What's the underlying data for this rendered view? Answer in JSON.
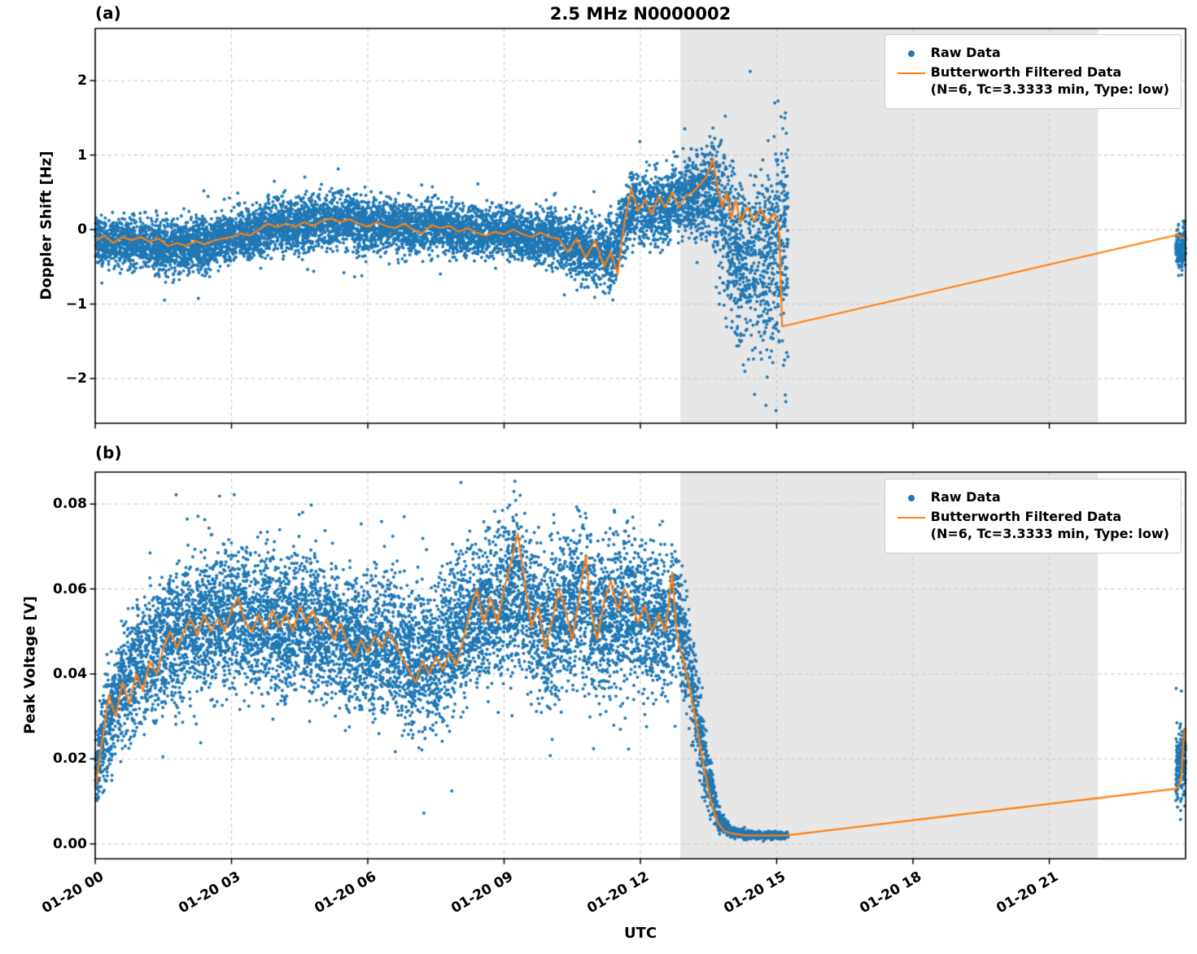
{
  "title": "2.5 MHz N0000002",
  "xlabel": "UTC",
  "legend": {
    "raw": "Raw Data",
    "filtered_line1": "Butterworth Filtered Data",
    "filtered_line2": "(N=6, Tc=3.3333 min, Type: low)"
  },
  "colors": {
    "raw": "#1f77b4",
    "filtered": "#ff7f0e",
    "shade": "#e7e7e7",
    "grid": "#c9c9c9",
    "spine": "#000000"
  },
  "chart_data": [
    {
      "type": "scatter",
      "panel_label": "(a)",
      "ylabel": "Doppler Shift [Hz]",
      "ylim": [
        -2.6,
        2.7
      ],
      "yticks": {
        "values": [
          2,
          1,
          0,
          -1,
          -2
        ],
        "labels": [
          "2",
          "1",
          "0",
          "−1",
          "−2"
        ]
      },
      "xlim": [
        0,
        24
      ],
      "xticks": {
        "values": [
          0,
          3,
          6,
          9,
          12,
          15,
          18,
          21
        ],
        "labels": [
          "01-20 00",
          "01-20 03",
          "01-20 06",
          "01-20 09",
          "01-20 12",
          "01-20 15",
          "01-20 18",
          "01-20 21"
        ]
      },
      "shaded_span": [
        12.88,
        22.07
      ],
      "grid": true,
      "legend_position": "upper right",
      "raw_scatter_envelope": [
        [
          0,
          -0.12,
          0.38
        ],
        [
          0.5,
          -0.18,
          0.4
        ],
        [
          1,
          -0.15,
          0.42
        ],
        [
          1.5,
          -0.25,
          0.45
        ],
        [
          2,
          -0.22,
          0.45
        ],
        [
          2.5,
          -0.18,
          0.42
        ],
        [
          3,
          -0.1,
          0.4
        ],
        [
          3.5,
          -0.02,
          0.42
        ],
        [
          4,
          0.05,
          0.45
        ],
        [
          4.5,
          0.08,
          0.45
        ],
        [
          5,
          0.1,
          0.45
        ],
        [
          5.5,
          0.12,
          0.45
        ],
        [
          6,
          0.05,
          0.45
        ],
        [
          6.5,
          0.08,
          0.45
        ],
        [
          7,
          0.0,
          0.45
        ],
        [
          7.5,
          0.05,
          0.42
        ],
        [
          8,
          -0.02,
          0.42
        ],
        [
          8.5,
          -0.05,
          0.4
        ],
        [
          9,
          -0.03,
          0.42
        ],
        [
          9.5,
          -0.08,
          0.42
        ],
        [
          10,
          -0.1,
          0.45
        ],
        [
          10.5,
          -0.2,
          0.5
        ],
        [
          11,
          -0.3,
          0.55
        ],
        [
          11.4,
          -0.35,
          0.6
        ],
        [
          11.8,
          0.3,
          0.6
        ],
        [
          12.2,
          0.25,
          0.6
        ],
        [
          12.6,
          0.35,
          0.6
        ],
        [
          13,
          0.4,
          0.65
        ],
        [
          13.3,
          0.5,
          0.75
        ],
        [
          13.6,
          0.55,
          0.95
        ],
        [
          13.9,
          0.1,
          1.3
        ],
        [
          14.2,
          -0.5,
          1.35
        ],
        [
          14.6,
          -0.45,
          1.5
        ],
        [
          15,
          -0.2,
          1.8
        ],
        [
          15.25,
          -0.1,
          1.9
        ],
        [
          23.78,
          -0.27,
          0.38
        ],
        [
          24,
          -0.22,
          0.33
        ]
      ],
      "raw_scatter_segments": [
        {
          "range": [
            0,
            15.25
          ],
          "approx_points_per_hour": 600
        },
        {
          "range": [
            23.78,
            24.0
          ],
          "approx_points_per_hour": 800
        }
      ],
      "filtered_line": [
        [
          0,
          -0.15
        ],
        [
          0.2,
          -0.08
        ],
        [
          0.4,
          -0.18
        ],
        [
          0.6,
          -0.1
        ],
        [
          0.8,
          -0.14
        ],
        [
          1,
          -0.1
        ],
        [
          1.2,
          -0.16
        ],
        [
          1.4,
          -0.12
        ],
        [
          1.6,
          -0.22
        ],
        [
          1.8,
          -0.18
        ],
        [
          2,
          -0.22
        ],
        [
          2.2,
          -0.15
        ],
        [
          2.4,
          -0.2
        ],
        [
          2.6,
          -0.15
        ],
        [
          2.8,
          -0.12
        ],
        [
          3,
          -0.1
        ],
        [
          3.2,
          -0.05
        ],
        [
          3.4,
          -0.08
        ],
        [
          3.6,
          0
        ],
        [
          3.8,
          0.08
        ],
        [
          4,
          0.03
        ],
        [
          4.2,
          0.08
        ],
        [
          4.4,
          0.04
        ],
        [
          4.6,
          0.1
        ],
        [
          4.8,
          0.05
        ],
        [
          5,
          0.12
        ],
        [
          5.2,
          0.15
        ],
        [
          5.4,
          0.1
        ],
        [
          5.6,
          0.14
        ],
        [
          5.8,
          0.08
        ],
        [
          6,
          0.04
        ],
        [
          6.2,
          0.1
        ],
        [
          6.4,
          0.05
        ],
        [
          6.6,
          0.02
        ],
        [
          6.8,
          0.08
        ],
        [
          7,
          0.0
        ],
        [
          7.2,
          -0.05
        ],
        [
          7.4,
          0.06
        ],
        [
          7.6,
          0.02
        ],
        [
          7.8,
          0.05
        ],
        [
          8,
          -0.03
        ],
        [
          8.2,
          0.02
        ],
        [
          8.4,
          -0.04
        ],
        [
          8.6,
          -0.08
        ],
        [
          8.8,
          -0.03
        ],
        [
          9,
          -0.06
        ],
        [
          9.2,
          0
        ],
        [
          9.4,
          -0.06
        ],
        [
          9.6,
          -0.1
        ],
        [
          9.8,
          -0.04
        ],
        [
          10,
          -0.1
        ],
        [
          10.2,
          -0.12
        ],
        [
          10.4,
          -0.3
        ],
        [
          10.6,
          -0.12
        ],
        [
          10.8,
          -0.38
        ],
        [
          11,
          -0.15
        ],
        [
          11.2,
          -0.5
        ],
        [
          11.35,
          -0.3
        ],
        [
          11.5,
          -0.6
        ],
        [
          11.65,
          0.1
        ],
        [
          11.8,
          0.55
        ],
        [
          11.95,
          0.25
        ],
        [
          12.1,
          0.4
        ],
        [
          12.25,
          0.2
        ],
        [
          12.4,
          0.45
        ],
        [
          12.55,
          0.3
        ],
        [
          12.7,
          0.5
        ],
        [
          12.85,
          0.3
        ],
        [
          13,
          0.45
        ],
        [
          13.15,
          0.5
        ],
        [
          13.3,
          0.6
        ],
        [
          13.45,
          0.7
        ],
        [
          13.6,
          0.95
        ],
        [
          13.7,
          0.55
        ],
        [
          13.8,
          0.3
        ],
        [
          13.9,
          0.5
        ],
        [
          14,
          0.15
        ],
        [
          14.1,
          0.4
        ],
        [
          14.2,
          0.1
        ],
        [
          14.35,
          0.3
        ],
        [
          14.5,
          0.12
        ],
        [
          14.65,
          0.28
        ],
        [
          14.8,
          0.1
        ],
        [
          14.95,
          0.22
        ],
        [
          15.05,
          0.05
        ],
        [
          15.12,
          -1.3
        ],
        [
          23.82,
          -0.07
        ],
        [
          23.9,
          -0.1
        ],
        [
          23.98,
          -0.12
        ]
      ]
    },
    {
      "type": "scatter",
      "panel_label": "(b)",
      "ylabel": "Peak Voltage [V]",
      "ylim": [
        -0.0035,
        0.0875
      ],
      "yticks": {
        "values": [
          0.08,
          0.06,
          0.04,
          0.02,
          0.0
        ],
        "labels": [
          "0.08",
          "0.06",
          "0.04",
          "0.02",
          "0.00"
        ]
      },
      "xlim": [
        0,
        24
      ],
      "xticks": {
        "values": [
          0,
          3,
          6,
          9,
          12,
          15,
          18,
          21
        ],
        "labels": [
          "01-20 00",
          "01-20 03",
          "01-20 06",
          "01-20 09",
          "01-20 12",
          "01-20 15",
          "01-20 18",
          "01-20 21"
        ]
      },
      "shaded_span": [
        12.88,
        22.07
      ],
      "grid": true,
      "legend_position": "upper right",
      "raw_scatter_envelope": [
        [
          0,
          0.016,
          0.01
        ],
        [
          0.2,
          0.025,
          0.014
        ],
        [
          0.5,
          0.035,
          0.016
        ],
        [
          0.8,
          0.04,
          0.018
        ],
        [
          1.2,
          0.045,
          0.019
        ],
        [
          1.6,
          0.048,
          0.02
        ],
        [
          2,
          0.05,
          0.02
        ],
        [
          2.5,
          0.052,
          0.02
        ],
        [
          3,
          0.053,
          0.02
        ],
        [
          3.5,
          0.052,
          0.02
        ],
        [
          4,
          0.051,
          0.02
        ],
        [
          4.5,
          0.053,
          0.02
        ],
        [
          5,
          0.05,
          0.02
        ],
        [
          5.5,
          0.048,
          0.02
        ],
        [
          6,
          0.047,
          0.02
        ],
        [
          6.5,
          0.048,
          0.02
        ],
        [
          7,
          0.043,
          0.02
        ],
        [
          7.5,
          0.043,
          0.02
        ],
        [
          8,
          0.05,
          0.021
        ],
        [
          8.5,
          0.054,
          0.021
        ],
        [
          9,
          0.057,
          0.022
        ],
        [
          9.3,
          0.06,
          0.024
        ],
        [
          9.7,
          0.052,
          0.022
        ],
        [
          10,
          0.05,
          0.022
        ],
        [
          10.4,
          0.055,
          0.022
        ],
        [
          10.8,
          0.058,
          0.023
        ],
        [
          11.2,
          0.052,
          0.022
        ],
        [
          11.6,
          0.056,
          0.022
        ],
        [
          12,
          0.054,
          0.021
        ],
        [
          12.4,
          0.052,
          0.02
        ],
        [
          12.8,
          0.055,
          0.019
        ],
        [
          13.1,
          0.04,
          0.016
        ],
        [
          13.4,
          0.02,
          0.012
        ],
        [
          13.7,
          0.006,
          0.004
        ],
        [
          14,
          0.0028,
          0.0015
        ],
        [
          14.5,
          0.002,
          0.001
        ],
        [
          15.25,
          0.002,
          0.001
        ],
        [
          23.78,
          0.017,
          0.013
        ],
        [
          24,
          0.021,
          0.014
        ]
      ],
      "raw_scatter_segments": [
        {
          "range": [
            0,
            15.25
          ],
          "approx_points_per_hour": 650
        },
        {
          "range": [
            23.78,
            24.0
          ],
          "approx_points_per_hour": 800
        }
      ],
      "filtered_line": [
        [
          0,
          0.013
        ],
        [
          0.15,
          0.024
        ],
        [
          0.3,
          0.035
        ],
        [
          0.45,
          0.03
        ],
        [
          0.6,
          0.038
        ],
        [
          0.75,
          0.033
        ],
        [
          0.9,
          0.04
        ],
        [
          1.05,
          0.036
        ],
        [
          1.2,
          0.043
        ],
        [
          1.35,
          0.04
        ],
        [
          1.5,
          0.046
        ],
        [
          1.65,
          0.05
        ],
        [
          1.8,
          0.046
        ],
        [
          1.95,
          0.05
        ],
        [
          2.1,
          0.053
        ],
        [
          2.25,
          0.049
        ],
        [
          2.4,
          0.054
        ],
        [
          2.55,
          0.05
        ],
        [
          2.7,
          0.053
        ],
        [
          2.85,
          0.05
        ],
        [
          3,
          0.055
        ],
        [
          3.15,
          0.058
        ],
        [
          3.3,
          0.052
        ],
        [
          3.45,
          0.05
        ],
        [
          3.6,
          0.054
        ],
        [
          3.75,
          0.05
        ],
        [
          3.9,
          0.055
        ],
        [
          4.05,
          0.051
        ],
        [
          4.2,
          0.054
        ],
        [
          4.35,
          0.05
        ],
        [
          4.5,
          0.056
        ],
        [
          4.65,
          0.052
        ],
        [
          4.8,
          0.055
        ],
        [
          4.95,
          0.05
        ],
        [
          5.1,
          0.053
        ],
        [
          5.25,
          0.048
        ],
        [
          5.4,
          0.052
        ],
        [
          5.55,
          0.047
        ],
        [
          5.7,
          0.044
        ],
        [
          5.85,
          0.048
        ],
        [
          6,
          0.045
        ],
        [
          6.15,
          0.049
        ],
        [
          6.3,
          0.046
        ],
        [
          6.45,
          0.05
        ],
        [
          6.6,
          0.047
        ],
        [
          6.75,
          0.044
        ],
        [
          6.9,
          0.041
        ],
        [
          7.05,
          0.038
        ],
        [
          7.2,
          0.043
        ],
        [
          7.35,
          0.04
        ],
        [
          7.5,
          0.044
        ],
        [
          7.65,
          0.041
        ],
        [
          7.8,
          0.045
        ],
        [
          7.95,
          0.042
        ],
        [
          8.1,
          0.048
        ],
        [
          8.25,
          0.055
        ],
        [
          8.4,
          0.06
        ],
        [
          8.55,
          0.052
        ],
        [
          8.7,
          0.058
        ],
        [
          8.85,
          0.052
        ],
        [
          9,
          0.06
        ],
        [
          9.15,
          0.066
        ],
        [
          9.3,
          0.073
        ],
        [
          9.45,
          0.062
        ],
        [
          9.6,
          0.051
        ],
        [
          9.75,
          0.056
        ],
        [
          9.9,
          0.046
        ],
        [
          10.05,
          0.052
        ],
        [
          10.2,
          0.06
        ],
        [
          10.35,
          0.055
        ],
        [
          10.5,
          0.048
        ],
        [
          10.65,
          0.058
        ],
        [
          10.8,
          0.068
        ],
        [
          10.9,
          0.056
        ],
        [
          11.05,
          0.048
        ],
        [
          11.2,
          0.057
        ],
        [
          11.35,
          0.062
        ],
        [
          11.5,
          0.055
        ],
        [
          11.65,
          0.06
        ],
        [
          11.8,
          0.057
        ],
        [
          11.95,
          0.052
        ],
        [
          12.1,
          0.056
        ],
        [
          12.25,
          0.05
        ],
        [
          12.4,
          0.054
        ],
        [
          12.55,
          0.05
        ],
        [
          12.7,
          0.064
        ],
        [
          12.8,
          0.049
        ],
        [
          12.95,
          0.043
        ],
        [
          13.1,
          0.036
        ],
        [
          13.25,
          0.027
        ],
        [
          13.4,
          0.018
        ],
        [
          13.55,
          0.01
        ],
        [
          13.7,
          0.005
        ],
        [
          13.85,
          0.003
        ],
        [
          14,
          0.0025
        ],
        [
          14.3,
          0.002
        ],
        [
          14.7,
          0.002
        ],
        [
          15.1,
          0.002
        ],
        [
          15.2,
          0.002
        ],
        [
          23.8,
          0.013
        ],
        [
          23.9,
          0.015
        ],
        [
          23.97,
          0.027
        ]
      ]
    }
  ]
}
